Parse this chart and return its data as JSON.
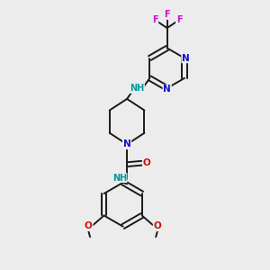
{
  "bg_color": "#ececec",
  "bond_color": "#1a1a1a",
  "bond_width": 1.4,
  "figsize": [
    3.0,
    3.0
  ],
  "dpi": 100,
  "atom_colors": {
    "N": "#1010cc",
    "O": "#cc1010",
    "F": "#cc10cc",
    "H_N": "#009999"
  },
  "xlim": [
    0,
    10
  ],
  "ylim": [
    0,
    10
  ]
}
